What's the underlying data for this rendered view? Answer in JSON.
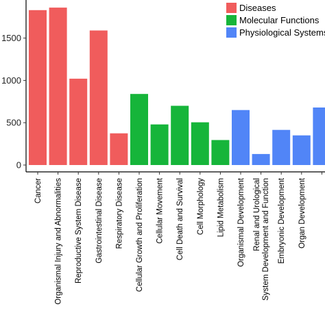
{
  "chart_data": {
    "type": "bar",
    "title": "",
    "xlabel": "",
    "ylabel": "",
    "ylim": [
      0,
      1950
    ],
    "yticks": [
      0,
      500,
      1000,
      1500
    ],
    "legend_position": "top-right",
    "grid": false,
    "categories": [
      "Cancer",
      "Organismal Injury and Abnormalities",
      "Reproductive System Disease",
      "Gastrointestinal Disease",
      "Respiratory Disease",
      "Cellular Growth and Proliferation",
      "Cellular Movement",
      "Cell Death and Survival",
      "Cell Morphology",
      "Lipid Metabolism",
      "Organismal Development",
      "Renal and Urological\nSystem Development and Function",
      "Embryonic Development",
      "Organ Development",
      ""
    ],
    "values": [
      1830,
      1860,
      1020,
      1590,
      375,
      840,
      480,
      700,
      505,
      295,
      650,
      130,
      415,
      350,
      680
    ],
    "groups": [
      0,
      0,
      0,
      0,
      0,
      1,
      1,
      1,
      1,
      1,
      2,
      2,
      2,
      2,
      2
    ],
    "series": [
      {
        "name": "Diseases",
        "color": "#f05c5c"
      },
      {
        "name": "Molecular Functions",
        "color": "#16b53a"
      },
      {
        "name": "Physiological Systems",
        "color": "#5185f7"
      }
    ]
  }
}
